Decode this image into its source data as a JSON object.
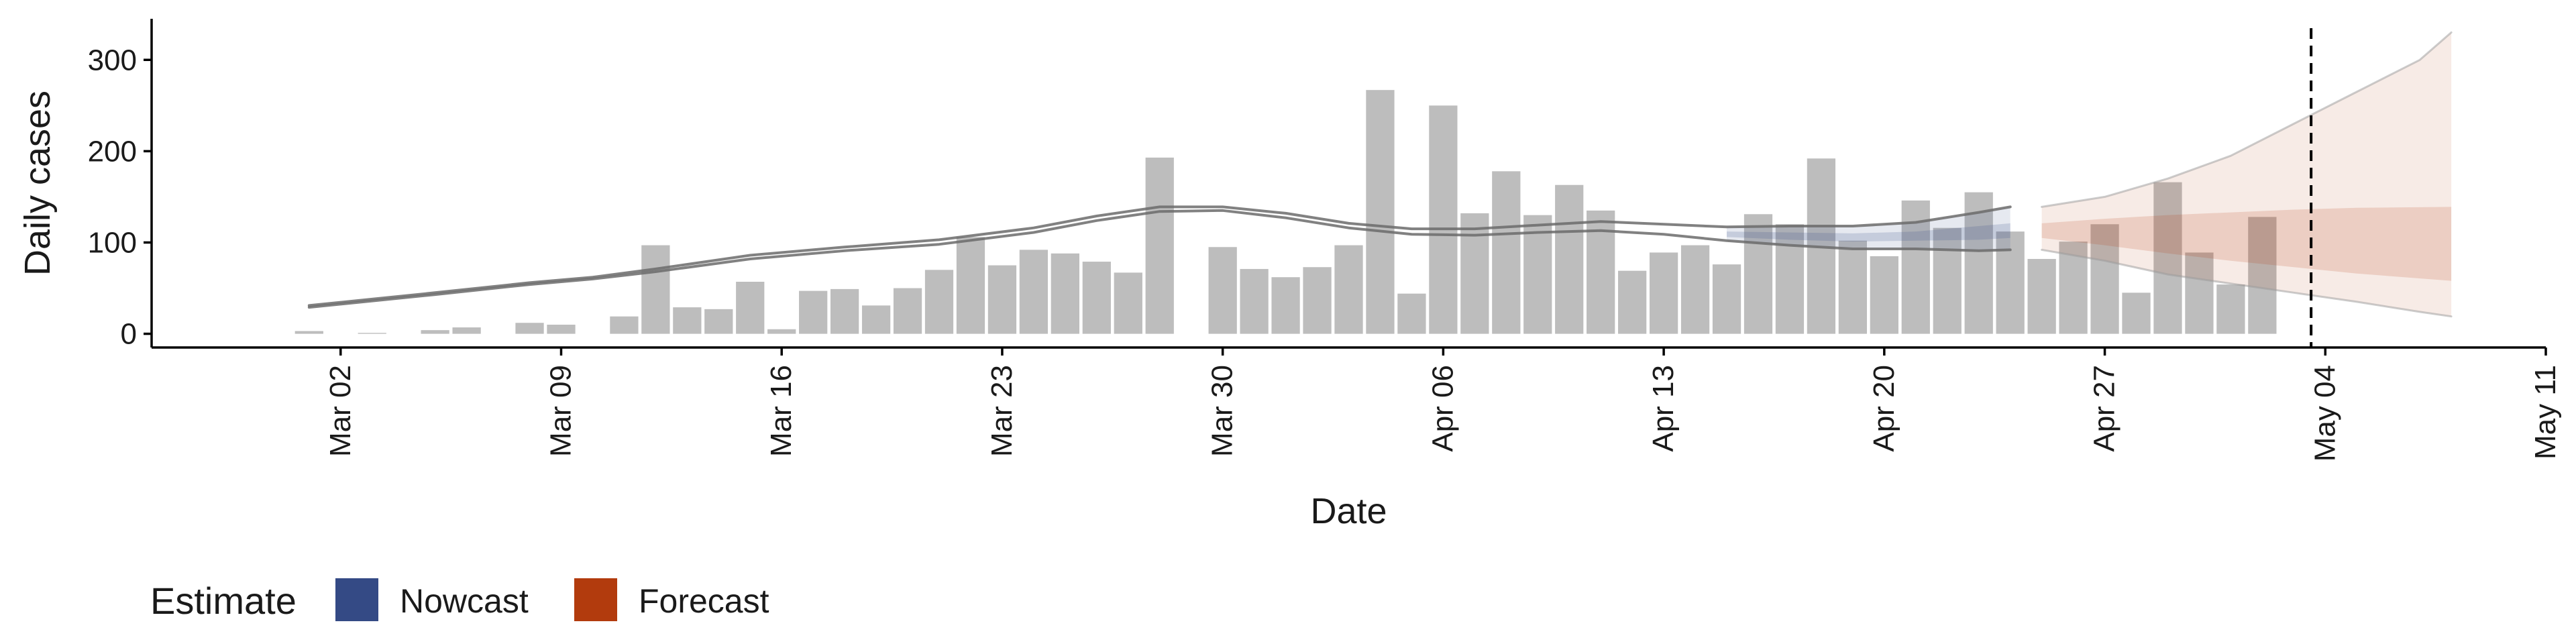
{
  "chart_data": {
    "type": "bar",
    "xlabel": "Date",
    "ylabel": "Daily cases",
    "ylim": [
      -15,
      345
    ],
    "xlim": [
      "2020-02-25",
      "2020-05-11"
    ],
    "y_ticks": [
      0,
      100,
      200,
      300
    ],
    "x_ticks": [
      {
        "date": "2020-03-02",
        "label": "Mar 02"
      },
      {
        "date": "2020-03-09",
        "label": "Mar 09"
      },
      {
        "date": "2020-03-16",
        "label": "Mar 16"
      },
      {
        "date": "2020-03-23",
        "label": "Mar 23"
      },
      {
        "date": "2020-03-30",
        "label": "Mar 30"
      },
      {
        "date": "2020-04-06",
        "label": "Apr 06"
      },
      {
        "date": "2020-04-13",
        "label": "Apr 13"
      },
      {
        "date": "2020-04-20",
        "label": "Apr 20"
      },
      {
        "date": "2020-04-27",
        "label": "Apr 27"
      },
      {
        "date": "2020-05-04",
        "label": "May 04"
      },
      {
        "date": "2020-05-11",
        "label": "May 11"
      }
    ],
    "vline_date": "2020-05-03",
    "bars": [
      {
        "date": "2020-03-01",
        "value": 3
      },
      {
        "date": "2020-03-02",
        "value": 0
      },
      {
        "date": "2020-03-03",
        "value": 1
      },
      {
        "date": "2020-03-04",
        "value": 0
      },
      {
        "date": "2020-03-05",
        "value": 4
      },
      {
        "date": "2020-03-06",
        "value": 7
      },
      {
        "date": "2020-03-07",
        "value": 0
      },
      {
        "date": "2020-03-08",
        "value": 12
      },
      {
        "date": "2020-03-09",
        "value": 10
      },
      {
        "date": "2020-03-10",
        "value": 0
      },
      {
        "date": "2020-03-11",
        "value": 19
      },
      {
        "date": "2020-03-12",
        "value": 97
      },
      {
        "date": "2020-03-13",
        "value": 29
      },
      {
        "date": "2020-03-14",
        "value": 27
      },
      {
        "date": "2020-03-15",
        "value": 57
      },
      {
        "date": "2020-03-16",
        "value": 5
      },
      {
        "date": "2020-03-17",
        "value": 47
      },
      {
        "date": "2020-03-18",
        "value": 49
      },
      {
        "date": "2020-03-19",
        "value": 31
      },
      {
        "date": "2020-03-20",
        "value": 50
      },
      {
        "date": "2020-03-21",
        "value": 70
      },
      {
        "date": "2020-03-22",
        "value": 106
      },
      {
        "date": "2020-03-23",
        "value": 75
      },
      {
        "date": "2020-03-24",
        "value": 92
      },
      {
        "date": "2020-03-25",
        "value": 88
      },
      {
        "date": "2020-03-26",
        "value": 79
      },
      {
        "date": "2020-03-27",
        "value": 67
      },
      {
        "date": "2020-03-28",
        "value": 193
      },
      {
        "date": "2020-03-29",
        "value": 0
      },
      {
        "date": "2020-03-30",
        "value": 95
      },
      {
        "date": "2020-03-31",
        "value": 71
      },
      {
        "date": "2020-04-01",
        "value": 62
      },
      {
        "date": "2020-04-02",
        "value": 73
      },
      {
        "date": "2020-04-03",
        "value": 97
      },
      {
        "date": "2020-04-04",
        "value": 267
      },
      {
        "date": "2020-04-05",
        "value": 44
      },
      {
        "date": "2020-04-06",
        "value": 250
      },
      {
        "date": "2020-04-07",
        "value": 132
      },
      {
        "date": "2020-04-08",
        "value": 178
      },
      {
        "date": "2020-04-09",
        "value": 130
      },
      {
        "date": "2020-04-10",
        "value": 163
      },
      {
        "date": "2020-04-11",
        "value": 135
      },
      {
        "date": "2020-04-12",
        "value": 69
      },
      {
        "date": "2020-04-13",
        "value": 89
      },
      {
        "date": "2020-04-14",
        "value": 97
      },
      {
        "date": "2020-04-15",
        "value": 76
      },
      {
        "date": "2020-04-16",
        "value": 131
      },
      {
        "date": "2020-04-17",
        "value": 120
      },
      {
        "date": "2020-04-18",
        "value": 192
      },
      {
        "date": "2020-04-19",
        "value": 102
      },
      {
        "date": "2020-04-20",
        "value": 85
      },
      {
        "date": "2020-04-21",
        "value": 146
      },
      {
        "date": "2020-04-22",
        "value": 116
      },
      {
        "date": "2020-04-23",
        "value": 155
      },
      {
        "date": "2020-04-24",
        "value": 112
      },
      {
        "date": "2020-04-25",
        "value": 82
      },
      {
        "date": "2020-04-26",
        "value": 101
      },
      {
        "date": "2020-04-27",
        "value": 120
      },
      {
        "date": "2020-04-28",
        "value": 45
      },
      {
        "date": "2020-04-29",
        "value": 166
      },
      {
        "date": "2020-04-30",
        "value": 89
      },
      {
        "date": "2020-05-01",
        "value": 54
      },
      {
        "date": "2020-05-02",
        "value": 128
      }
    ],
    "estimate_lower": [
      [
        "2020-03-01",
        29
      ],
      [
        "2020-03-03",
        36
      ],
      [
        "2020-03-05",
        43
      ],
      [
        "2020-03-08",
        54
      ],
      [
        "2020-03-10",
        60
      ],
      [
        "2020-03-12",
        68
      ],
      [
        "2020-03-15",
        82
      ],
      [
        "2020-03-18",
        91
      ],
      [
        "2020-03-21",
        98
      ],
      [
        "2020-03-24",
        111
      ],
      [
        "2020-03-26",
        124
      ],
      [
        "2020-03-28",
        134
      ],
      [
        "2020-03-30",
        135
      ],
      [
        "2020-04-01",
        127
      ],
      [
        "2020-04-03",
        116
      ],
      [
        "2020-04-05",
        109
      ],
      [
        "2020-04-07",
        108
      ],
      [
        "2020-04-09",
        111
      ],
      [
        "2020-04-11",
        113
      ],
      [
        "2020-04-13",
        109
      ],
      [
        "2020-04-15",
        102
      ],
      [
        "2020-04-17",
        97
      ],
      [
        "2020-04-19",
        93
      ],
      [
        "2020-04-21",
        93
      ],
      [
        "2020-04-23",
        91
      ],
      [
        "2020-04-24",
        92
      ]
    ],
    "estimate_upper": [
      [
        "2020-03-01",
        31
      ],
      [
        "2020-03-03",
        38
      ],
      [
        "2020-03-05",
        45
      ],
      [
        "2020-03-08",
        56
      ],
      [
        "2020-03-10",
        62
      ],
      [
        "2020-03-12",
        71
      ],
      [
        "2020-03-15",
        86
      ],
      [
        "2020-03-18",
        95
      ],
      [
        "2020-03-21",
        103
      ],
      [
        "2020-03-24",
        116
      ],
      [
        "2020-03-26",
        129
      ],
      [
        "2020-03-28",
        139
      ],
      [
        "2020-03-30",
        139
      ],
      [
        "2020-04-01",
        132
      ],
      [
        "2020-04-03",
        121
      ],
      [
        "2020-04-05",
        115
      ],
      [
        "2020-04-07",
        115
      ],
      [
        "2020-04-09",
        119
      ],
      [
        "2020-04-11",
        123
      ],
      [
        "2020-04-13",
        120
      ],
      [
        "2020-04-15",
        117
      ],
      [
        "2020-04-17",
        118
      ],
      [
        "2020-04-19",
        118
      ],
      [
        "2020-04-21",
        122
      ],
      [
        "2020-04-23",
        133
      ],
      [
        "2020-04-24",
        139
      ]
    ],
    "nowcast_outer": {
      "upper": [
        [
          "2020-04-15",
          117
        ],
        [
          "2020-04-17",
          118
        ],
        [
          "2020-04-19",
          118
        ],
        [
          "2020-04-21",
          122
        ],
        [
          "2020-04-23",
          133
        ],
        [
          "2020-04-24",
          139
        ]
      ],
      "lower": [
        [
          "2020-04-15",
          102
        ],
        [
          "2020-04-17",
          97
        ],
        [
          "2020-04-19",
          93
        ],
        [
          "2020-04-21",
          93
        ],
        [
          "2020-04-23",
          91
        ],
        [
          "2020-04-24",
          92
        ]
      ]
    },
    "nowcast_inner": {
      "upper": [
        [
          "2020-04-15",
          112
        ],
        [
          "2020-04-17",
          111
        ],
        [
          "2020-04-19",
          110
        ],
        [
          "2020-04-21",
          112
        ],
        [
          "2020-04-23",
          118
        ],
        [
          "2020-04-24",
          121
        ]
      ],
      "lower": [
        [
          "2020-04-15",
          106
        ],
        [
          "2020-04-17",
          103
        ],
        [
          "2020-04-19",
          101
        ],
        [
          "2020-04-21",
          102
        ],
        [
          "2020-04-23",
          103
        ],
        [
          "2020-04-24",
          105
        ]
      ]
    },
    "forecast_outer": {
      "upper": [
        [
          "2020-04-25",
          139
        ],
        [
          "2020-04-27",
          150
        ],
        [
          "2020-04-29",
          170
        ],
        [
          "2020-05-01",
          195
        ],
        [
          "2020-05-03",
          230
        ],
        [
          "2020-05-05",
          265
        ],
        [
          "2020-05-07",
          300
        ],
        [
          "2020-05-08",
          330
        ]
      ],
      "lower": [
        [
          "2020-04-25",
          92
        ],
        [
          "2020-04-27",
          80
        ],
        [
          "2020-04-29",
          65
        ],
        [
          "2020-05-01",
          55
        ],
        [
          "2020-05-03",
          45
        ],
        [
          "2020-05-05",
          35
        ],
        [
          "2020-05-07",
          24
        ],
        [
          "2020-05-08",
          19
        ]
      ]
    },
    "forecast_inner": {
      "upper": [
        [
          "2020-04-25",
          121
        ],
        [
          "2020-04-27",
          126
        ],
        [
          "2020-04-29",
          130
        ],
        [
          "2020-05-01",
          133
        ],
        [
          "2020-05-03",
          136
        ],
        [
          "2020-05-05",
          138
        ],
        [
          "2020-05-08",
          139
        ]
      ],
      "lower": [
        [
          "2020-04-25",
          105
        ],
        [
          "2020-04-27",
          97
        ],
        [
          "2020-04-29",
          88
        ],
        [
          "2020-05-01",
          80
        ],
        [
          "2020-05-03",
          73
        ],
        [
          "2020-05-05",
          66
        ],
        [
          "2020-05-08",
          58
        ]
      ]
    },
    "legend": {
      "title": "Estimate",
      "placement": "bottom-left",
      "entries": [
        {
          "name": "Nowcast",
          "color": "#344a85"
        },
        {
          "name": "Forecast",
          "color": "#b23b0d"
        }
      ]
    },
    "colors": {
      "bars": "#bdbdbd",
      "estimate_line": "#6b6b6b",
      "nowcast": "#344a85",
      "forecast": "#b23b0d",
      "vline": "#000000"
    }
  }
}
